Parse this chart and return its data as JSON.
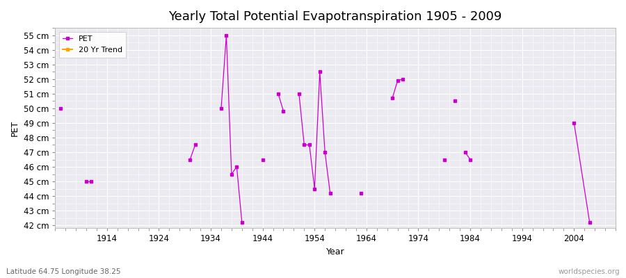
{
  "title": "Yearly Total Potential Evapotranspiration 1905 - 2009",
  "xlabel": "Year",
  "ylabel": "PET",
  "subtitle": "Latitude 64.75 Longitude 38.25",
  "watermark": "worldspecies.org",
  "ylim": [
    41.8,
    55.5
  ],
  "yticks": [
    42,
    43,
    44,
    45,
    46,
    47,
    48,
    49,
    50,
    51,
    52,
    53,
    54,
    55
  ],
  "xlim": [
    1904,
    2012
  ],
  "xticks": [
    1914,
    1924,
    1934,
    1944,
    1954,
    1964,
    1974,
    1984,
    1994,
    2004
  ],
  "segments": [
    [
      [
        1905,
        50.0
      ]
    ],
    [
      [
        1910,
        45.0
      ],
      [
        1911,
        45.0
      ]
    ],
    [
      [
        1930,
        46.5
      ],
      [
        1931,
        47.5
      ]
    ],
    [
      [
        1936,
        50.0
      ],
      [
        1937,
        55.0
      ],
      [
        1938,
        45.5
      ],
      [
        1939,
        46.0
      ],
      [
        1940,
        42.2
      ]
    ],
    [
      [
        1944,
        46.5
      ]
    ],
    [
      [
        1947,
        51.0
      ],
      [
        1948,
        49.8
      ]
    ],
    [
      [
        1951,
        51.0
      ],
      [
        1952,
        47.5
      ],
      [
        1953,
        47.5
      ],
      [
        1954,
        44.5
      ],
      [
        1955,
        52.5
      ],
      [
        1956,
        47.0
      ],
      [
        1957,
        44.2
      ]
    ],
    [
      [
        1963,
        44.2
      ]
    ],
    [
      [
        1969,
        50.7
      ],
      [
        1970,
        51.9
      ],
      [
        1971,
        52.0
      ]
    ],
    [
      [
        1979,
        46.5
      ]
    ],
    [
      [
        1981,
        50.5
      ]
    ],
    [
      [
        1983,
        47.0
      ],
      [
        1984,
        46.5
      ]
    ],
    [
      [
        2004,
        49.0
      ],
      [
        2007,
        42.2
      ]
    ]
  ],
  "pet_color": "#cc00cc",
  "trend_color": "#ffa500",
  "bg_color": "#eaeaf0",
  "fig_bg": "#ffffff",
  "legend_labels": [
    "PET",
    "20 Yr Trend"
  ],
  "title_fontsize": 13,
  "label_fontsize": 9,
  "tick_fontsize": 8.5
}
